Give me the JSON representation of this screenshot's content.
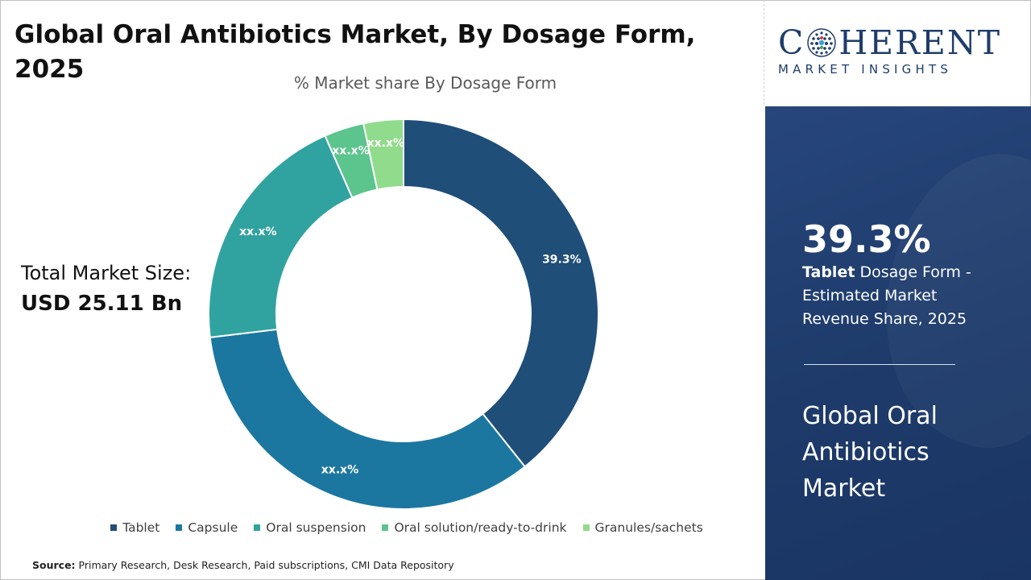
{
  "header": {
    "title": "Global Oral Antibiotics Market, By Dosage Form, 2025"
  },
  "total_market": {
    "label": "Total Market Size:",
    "value": "USD 25.11 Bn"
  },
  "source": {
    "label": "Source:",
    "text": "Primary Research, Desk Research, Paid subscriptions, CMI Data Repository"
  },
  "logo": {
    "top_left": "C",
    "top_right": "HERENT",
    "bottom": "MARKET INSIGHTS"
  },
  "side_panel": {
    "kpi_value": "39.3%",
    "kpi_bold": "Tablet",
    "kpi_text": " Dosage Form - Estimated Market Revenue Share, 2025",
    "market_name": "Global Oral Antibiotics Market"
  },
  "colors": {
    "panel_bg": "#1d3a6a",
    "logo_blue": "#1f3d6b"
  },
  "chart_data": {
    "type": "pie",
    "subtitle": "% Market share By Dosage Form",
    "donut": true,
    "categories": [
      "Tablet",
      "Capsule",
      "Oral suspension",
      "Oral solution/ready-to-drink",
      "Granules/sachets"
    ],
    "values": [
      39.3,
      33.8,
      20.3,
      3.3,
      3.3
    ],
    "labels": [
      "39.3%",
      "xx.x%",
      "xx.x%",
      "xx.x%",
      "xx.x%"
    ],
    "colors": [
      "#1f4e79",
      "#1b77a0",
      "#30a3a0",
      "#5cc48d",
      "#90dc8c"
    ],
    "legend_position": "bottom"
  }
}
